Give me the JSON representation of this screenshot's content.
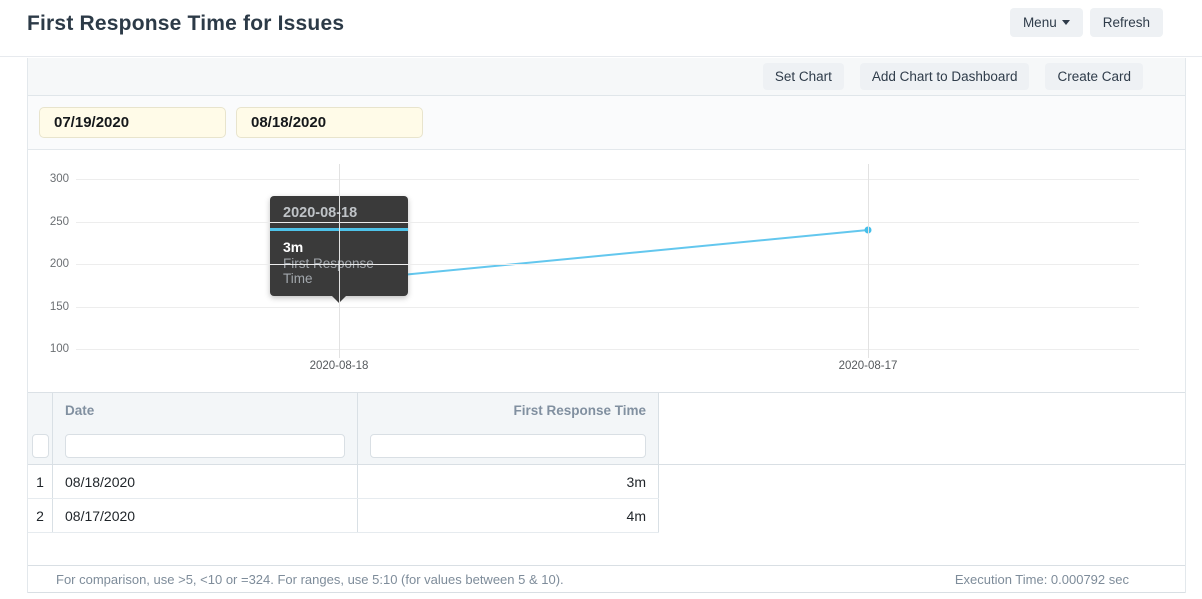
{
  "header": {
    "title": "First Response Time for Issues",
    "menu_label": "Menu",
    "refresh_label": "Refresh"
  },
  "toolbar": {
    "set_chart": "Set Chart",
    "add_chart_to_dashboard": "Add Chart to Dashboard",
    "create_card": "Create Card"
  },
  "date_filters": {
    "start": "07/19/2020",
    "end": "08/18/2020"
  },
  "chart_data": {
    "type": "line",
    "title": "",
    "x": [
      "2020-08-18",
      "2020-08-17"
    ],
    "series": [
      {
        "name": "First Response Time",
        "values_seconds": [
          180,
          240
        ],
        "values_display": [
          "3m",
          "4m"
        ],
        "color": "#63c7ee",
        "point_color": "#45bfea"
      }
    ],
    "yticks": [
      300,
      250,
      200,
      150,
      100
    ],
    "ylim": [
      90,
      315
    ],
    "grid": true,
    "legend": false,
    "tooltip": {
      "title": "2020-08-18",
      "value": "3m",
      "series": "First Response Time",
      "accent_color": "#4ec3ea"
    }
  },
  "table": {
    "columns": [
      "Date",
      "First Response Time"
    ],
    "rows": [
      {
        "num": "1",
        "date": "08/18/2020",
        "value": "3m"
      },
      {
        "num": "2",
        "date": "08/17/2020",
        "value": "4m"
      }
    ],
    "filters": {
      "date_value": "",
      "value_value": ""
    }
  },
  "footer": {
    "hint": "For comparison, use >5, <10 or =324. For ranges, use 5:10 (for values between 5 & 10).",
    "execution_time": "Execution Time: 0.000792 sec"
  }
}
